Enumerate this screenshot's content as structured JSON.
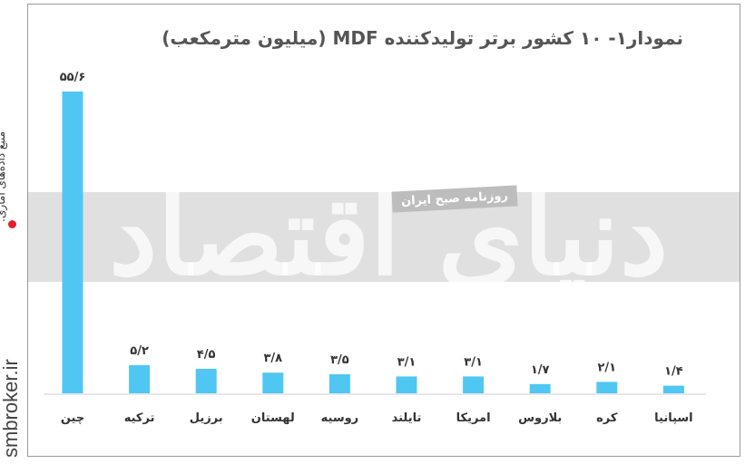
{
  "chart_data": {
    "type": "bar",
    "title": "نمودار۱- ۱۰ کشور برتر تولیدکننده MDF (میلیون مترمکعب)",
    "categories": [
      "چین",
      "ترکیه",
      "برزیل",
      "لهستان",
      "روسیه",
      "تایلند",
      "امریکا",
      "بلاروس",
      "کره",
      "اسپانیا"
    ],
    "values": [
      55.6,
      5.2,
      4.5,
      3.8,
      3.5,
      3.1,
      3.1,
      1.7,
      2.1,
      1.4
    ],
    "value_labels": [
      "۵۵/۶",
      "۵/۲",
      "۴/۵",
      "۳/۸",
      "۳/۵",
      "۳/۱",
      "۳/۱",
      "۱/۷",
      "۲/۱",
      "۱/۴"
    ],
    "xlabel": "",
    "ylabel": "",
    "ylim": [
      0,
      55.6
    ],
    "grid": false,
    "colors": {
      "bar": "#4fc7f2"
    }
  },
  "watermark": {
    "big_text": "دنیای اقتصاد",
    "tag_text": "روزنامه صبح ایران"
  },
  "source": {
    "label": "منبع داده‌های آماری:",
    "site": "smbroker.ir"
  }
}
